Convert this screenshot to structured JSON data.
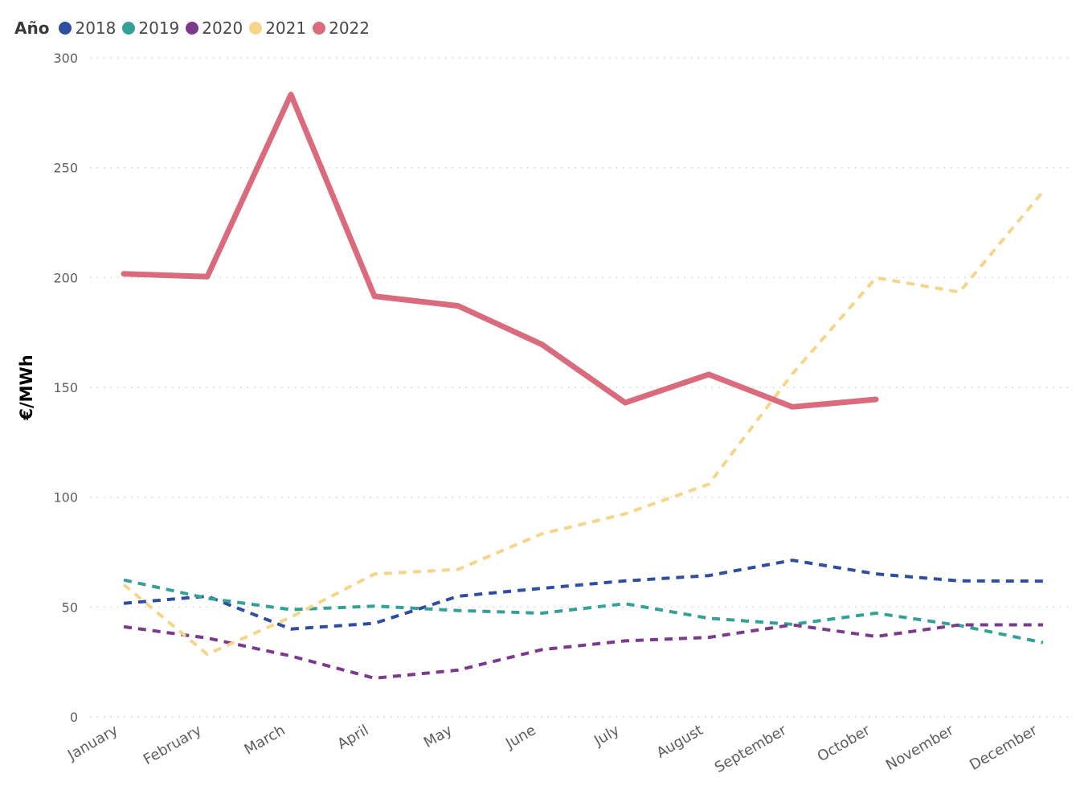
{
  "chart_data": {
    "type": "line",
    "legend_title": "Año",
    "legend_position": "top-left",
    "ylabel": "€/MWh",
    "xlabel": "",
    "ylim": [
      0,
      300
    ],
    "y_ticks": [
      "0",
      "50",
      "100",
      "150",
      "200",
      "250",
      "300"
    ],
    "grid": true,
    "categories": [
      "January",
      "February",
      "March",
      "April",
      "May",
      "June",
      "July",
      "August",
      "September",
      "October",
      "November",
      "December"
    ],
    "series": [
      {
        "name": "2018",
        "color": "#2F4E9F",
        "style": "dashed",
        "values": [
          51.7,
          54.9,
          40.0,
          42.6,
          54.9,
          58.5,
          61.9,
          64.3,
          71.3,
          65.1,
          61.9,
          61.8
        ]
      },
      {
        "name": "2019",
        "color": "#35A196",
        "style": "dashed",
        "values": [
          62.3,
          54.0,
          48.8,
          50.4,
          48.4,
          47.2,
          51.5,
          44.9,
          42.1,
          47.2,
          41.6,
          33.8
        ]
      },
      {
        "name": "2020",
        "color": "#7B3A8C",
        "style": "dashed",
        "values": [
          41.0,
          35.9,
          27.7,
          17.6,
          21.3,
          30.6,
          34.6,
          36.2,
          41.9,
          36.6,
          41.9,
          41.9
        ]
      },
      {
        "name": "2021",
        "color": "#F5D58A",
        "style": "dashed",
        "values": [
          60.2,
          28.5,
          45.4,
          65.0,
          67.1,
          83.3,
          92.4,
          105.9,
          156.1,
          199.9,
          193.4,
          239.2
        ]
      },
      {
        "name": "2022",
        "color": "#DA6B7C",
        "style": "solid",
        "values": [
          201.7,
          200.4,
          283.3,
          191.5,
          187.1,
          169.6,
          143.0,
          155.9,
          141.1,
          144.5,
          null,
          null
        ]
      }
    ]
  }
}
